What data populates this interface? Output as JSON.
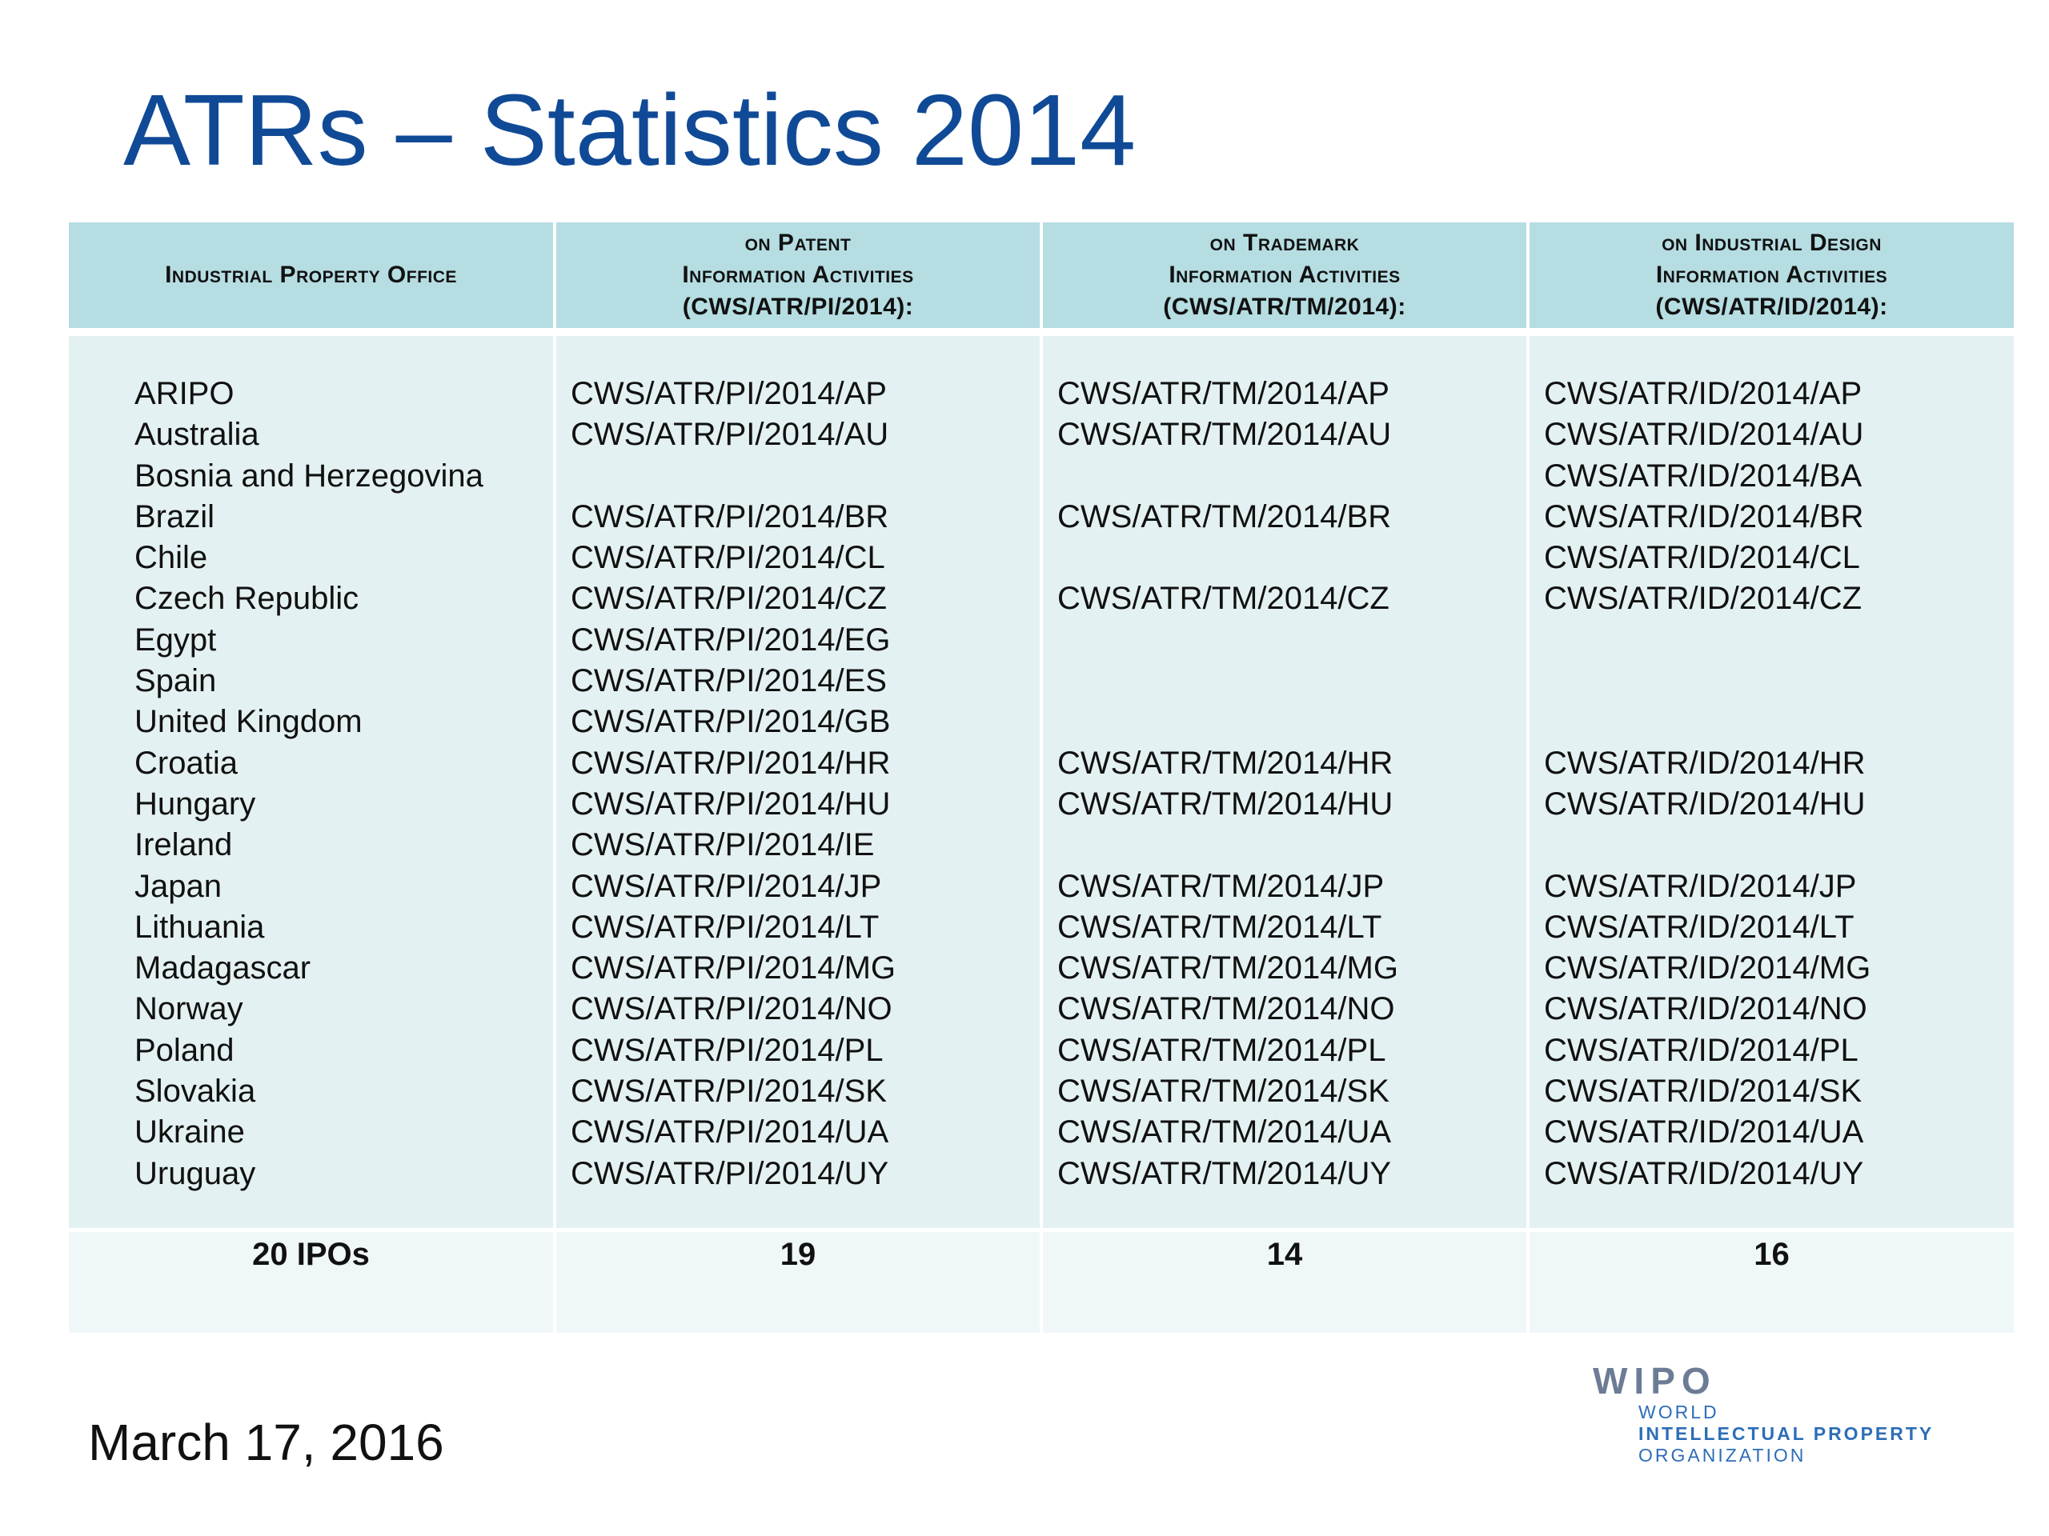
{
  "title": "ATRs – Statistics 2014",
  "columns": [
    {
      "head": [
        "Industrial Property Office"
      ]
    },
    {
      "head": [
        "on Patent",
        "Information Activities",
        "(CWS/ATR/PI/2014):"
      ]
    },
    {
      "head": [
        "on Trademark",
        "Information Activities",
        "(CWS/ATR/TM/2014):"
      ]
    },
    {
      "head": [
        "on Industrial Design",
        "Information Activities",
        "(CWS/ATR/ID/2014):"
      ]
    }
  ],
  "rows": [
    {
      "office": "ARIPO",
      "pi": "CWS/ATR/PI/2014/AP",
      "tm": "CWS/ATR/TM/2014/AP",
      "id": "CWS/ATR/ID/2014/AP"
    },
    {
      "office": "Australia",
      "pi": "CWS/ATR/PI/2014/AU",
      "tm": "CWS/ATR/TM/2014/AU",
      "id": "CWS/ATR/ID/2014/AU"
    },
    {
      "office": "Bosnia and Herzegovina",
      "pi": "",
      "tm": "",
      "id": "CWS/ATR/ID/2014/BA"
    },
    {
      "office": "Brazil",
      "pi": "CWS/ATR/PI/2014/BR",
      "tm": "CWS/ATR/TM/2014/BR",
      "id": "CWS/ATR/ID/2014/BR"
    },
    {
      "office": "Chile",
      "pi": "CWS/ATR/PI/2014/CL",
      "tm": "",
      "id": "CWS/ATR/ID/2014/CL"
    },
    {
      "office": "Czech Republic",
      "pi": "CWS/ATR/PI/2014/CZ",
      "tm": "CWS/ATR/TM/2014/CZ",
      "id": "CWS/ATR/ID/2014/CZ"
    },
    {
      "office": "Egypt",
      "pi": "CWS/ATR/PI/2014/EG",
      "tm": "",
      "id": ""
    },
    {
      "office": "Spain",
      "pi": "CWS/ATR/PI/2014/ES",
      "tm": "",
      "id": ""
    },
    {
      "office": "United Kingdom",
      "pi": "CWS/ATR/PI/2014/GB",
      "tm": "",
      "id": ""
    },
    {
      "office": "Croatia",
      "pi": "CWS/ATR/PI/2014/HR",
      "tm": "CWS/ATR/TM/2014/HR",
      "id": "CWS/ATR/ID/2014/HR"
    },
    {
      "office": "Hungary",
      "pi": "CWS/ATR/PI/2014/HU",
      "tm": "CWS/ATR/TM/2014/HU",
      "id": "CWS/ATR/ID/2014/HU"
    },
    {
      "office": "Ireland",
      "pi": "CWS/ATR/PI/2014/IE",
      "tm": "",
      "id": ""
    },
    {
      "office": "Japan",
      "pi": "CWS/ATR/PI/2014/JP",
      "tm": "CWS/ATR/TM/2014/JP",
      "id": "CWS/ATR/ID/2014/JP"
    },
    {
      "office": "Lithuania",
      "pi": "CWS/ATR/PI/2014/LT",
      "tm": "CWS/ATR/TM/2014/LT",
      "id": "CWS/ATR/ID/2014/LT"
    },
    {
      "office": "Madagascar",
      "pi": "CWS/ATR/PI/2014/MG",
      "tm": "CWS/ATR/TM/2014/MG",
      "id": "CWS/ATR/ID/2014/MG"
    },
    {
      "office": "Norway",
      "pi": "CWS/ATR/PI/2014/NO",
      "tm": "CWS/ATR/TM/2014/NO",
      "id": "CWS/ATR/ID/2014/NO"
    },
    {
      "office": "Poland",
      "pi": "CWS/ATR/PI/2014/PL",
      "tm": "CWS/ATR/TM/2014/PL",
      "id": "CWS/ATR/ID/2014/PL"
    },
    {
      "office": "Slovakia",
      "pi": "CWS/ATR/PI/2014/SK",
      "tm": "CWS/ATR/TM/2014/SK",
      "id": "CWS/ATR/ID/2014/SK"
    },
    {
      "office": "Ukraine",
      "pi": "CWS/ATR/PI/2014/UA",
      "tm": "CWS/ATR/TM/2014/UA",
      "id": "CWS/ATR/ID/2014/UA"
    },
    {
      "office": "Uruguay",
      "pi": "CWS/ATR/PI/2014/UY",
      "tm": "CWS/ATR/TM/2014/UY",
      "id": "CWS/ATR/ID/2014/UY"
    }
  ],
  "totals": {
    "office": "20 IPOs",
    "pi": "19",
    "tm": "14",
    "id": "16"
  },
  "date": "March 17, 2016",
  "logo": {
    "word": "WIPO",
    "lines": [
      "WORLD",
      "INTELLECTUAL PROPERTY",
      "ORGANIZATION"
    ]
  },
  "colors": {
    "title": "#104a96",
    "header_bg": "#b5dde2",
    "body_bg": "#e4f1f2",
    "logo_gray": "#6c7c95",
    "logo_blue": "#2d6db7"
  }
}
